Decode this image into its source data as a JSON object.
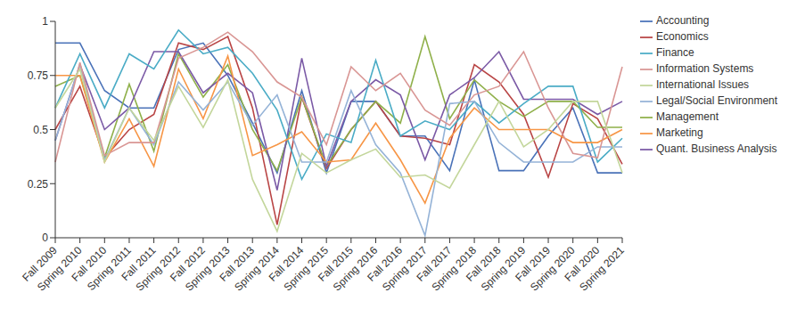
{
  "chart_data": {
    "type": "line",
    "categories": [
      "Fall 2009",
      "Spring 2010",
      "Fall 2010",
      "Spring 2011",
      "Fall 2011",
      "Spring 2012",
      "Fall 2012",
      "Spring 2013",
      "Fall 2013",
      "Spring 2014",
      "Fall 2014",
      "Spring 2015",
      "Fall 2015",
      "Spring 2016",
      "Fall 2016",
      "Spring 2017",
      "Fall 2017",
      "Spring 2018",
      "Fall 2018",
      "Spring 2019",
      "Fall 2019",
      "Spring 2020",
      "Fall 2020",
      "Spring 2021"
    ],
    "series": [
      {
        "name": "Accounting",
        "color": "#4a72b8",
        "values": [
          0.9,
          0.9,
          0.68,
          0.6,
          0.6,
          0.87,
          0.9,
          0.75,
          0.53,
          0.3,
          0.68,
          0.3,
          0.63,
          0.63,
          0.47,
          0.47,
          0.31,
          0.73,
          0.31,
          0.31,
          0.47,
          0.6,
          0.3,
          0.3
        ]
      },
      {
        "name": "Economics",
        "color": "#b94545",
        "values": [
          0.5,
          0.7,
          0.37,
          0.5,
          0.57,
          0.9,
          0.87,
          0.93,
          0.6,
          0.06,
          0.65,
          0.32,
          0.5,
          0.63,
          0.47,
          0.46,
          0.43,
          0.8,
          0.72,
          0.57,
          0.28,
          0.62,
          0.55,
          0.34
        ]
      },
      {
        "name": "Management",
        "color": "#8fb04a",
        "values": [
          0.7,
          0.75,
          0.37,
          0.71,
          0.4,
          0.85,
          0.65,
          0.8,
          0.5,
          0.31,
          0.65,
          0.33,
          0.5,
          0.63,
          0.53,
          0.93,
          0.55,
          0.73,
          0.63,
          0.56,
          0.63,
          0.63,
          0.51,
          0.51
        ]
      },
      {
        "name": "Quant. Business Analysis",
        "color": "#7b5aa6",
        "values": [
          0.45,
          0.8,
          0.5,
          0.6,
          0.86,
          0.86,
          0.67,
          0.76,
          0.67,
          0.22,
          0.83,
          0.33,
          0.63,
          0.73,
          0.66,
          0.36,
          0.66,
          0.74,
          0.86,
          0.64,
          0.64,
          0.64,
          0.57,
          0.63
        ]
      },
      {
        "name": "Finance",
        "color": "#4bacc6",
        "values": [
          0.6,
          0.85,
          0.6,
          0.85,
          0.78,
          0.96,
          0.85,
          0.88,
          0.76,
          0.59,
          0.27,
          0.48,
          0.44,
          0.82,
          0.47,
          0.54,
          0.5,
          0.63,
          0.53,
          0.62,
          0.7,
          0.7,
          0.35,
          0.46
        ]
      },
      {
        "name": "Marketing",
        "color": "#f79646",
        "values": [
          0.75,
          0.75,
          0.35,
          0.55,
          0.33,
          0.78,
          0.55,
          0.84,
          0.38,
          0.43,
          0.49,
          0.35,
          0.36,
          0.53,
          0.36,
          0.16,
          0.46,
          0.6,
          0.5,
          0.5,
          0.5,
          0.44,
          0.44,
          0.5
        ]
      },
      {
        "name": "Legal/Social Environment",
        "color": "#95b3d7",
        "values": [
          0.45,
          0.8,
          0.36,
          0.6,
          0.43,
          0.72,
          0.59,
          0.72,
          0.52,
          0.66,
          0.35,
          0.35,
          0.68,
          0.43,
          0.3,
          0.01,
          0.62,
          0.63,
          0.44,
          0.35,
          0.35,
          0.35,
          0.42,
          0.42
        ]
      },
      {
        "name": "Information Systems",
        "color": "#d99694",
        "values": [
          0.35,
          0.81,
          0.38,
          0.44,
          0.44,
          0.83,
          0.88,
          0.95,
          0.86,
          0.72,
          0.65,
          0.43,
          0.79,
          0.68,
          0.76,
          0.59,
          0.52,
          0.66,
          0.7,
          0.86,
          0.6,
          0.39,
          0.37,
          0.79
        ]
      },
      {
        "name": "International Issues",
        "color": "#c3d69b",
        "values": [
          0.6,
          0.78,
          0.35,
          0.6,
          0.45,
          0.7,
          0.51,
          0.73,
          0.27,
          0.03,
          0.39,
          0.3,
          0.36,
          0.41,
          0.28,
          0.29,
          0.23,
          0.43,
          0.63,
          0.42,
          0.5,
          0.63,
          0.63,
          0.3
        ]
      }
    ],
    "ylim": [
      0,
      1
    ],
    "yticks": [
      0,
      0.25,
      0.5,
      0.75,
      1
    ],
    "grid": false,
    "legend": "right"
  }
}
